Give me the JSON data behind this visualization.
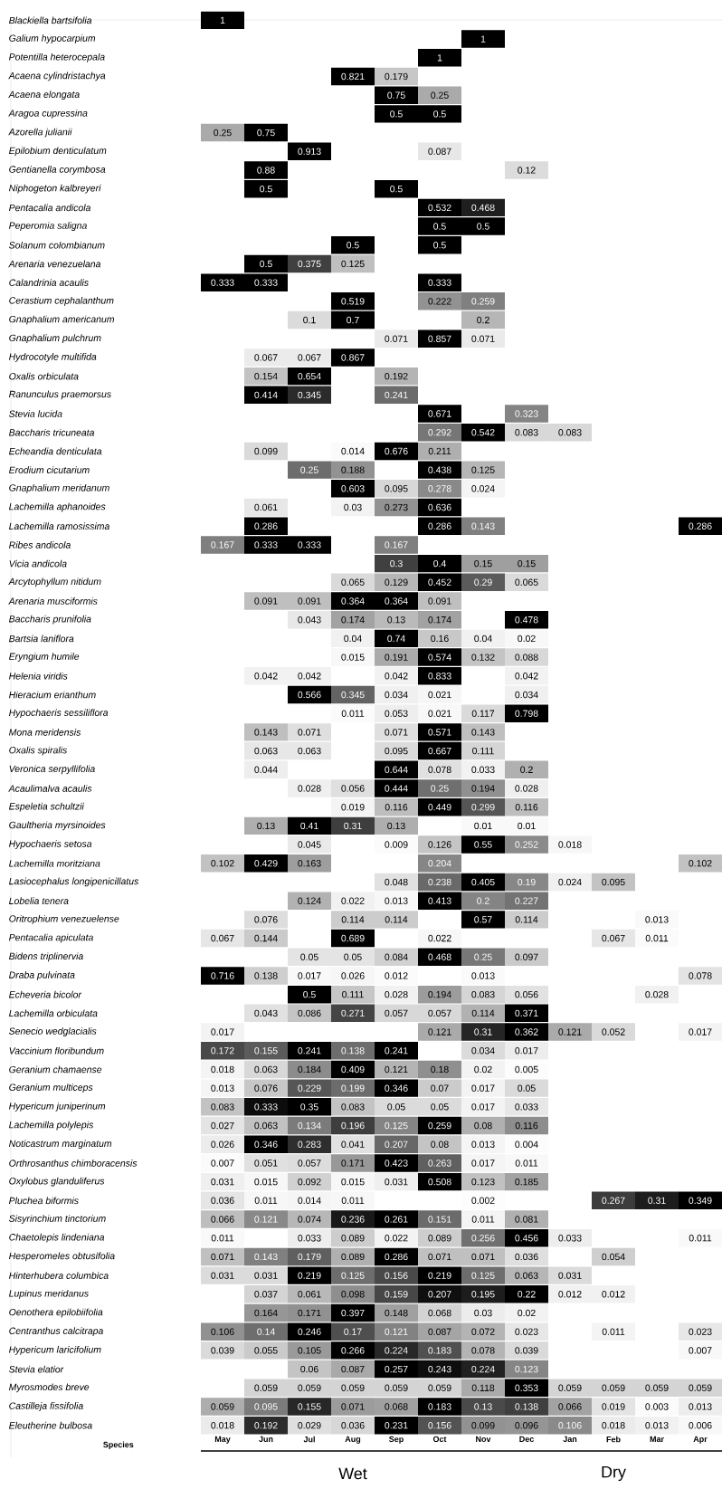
{
  "chart_data": {
    "type": "heatmap",
    "ylabel": "Species",
    "annotations": [
      "Wet",
      "Dry"
    ],
    "data_labels": true,
    "categories": [
      "May",
      "Jun",
      "Jul",
      "Aug",
      "Sep",
      "Oct",
      "Nov",
      "Dec",
      "Jan",
      "Feb",
      "Mar",
      "Apr"
    ],
    "y_categories": [
      "Blackiella bartsifolia",
      "Galium hypocarpium",
      "Potentilla heterocepala",
      "Acaena cylindristachya",
      "Acaena elongata",
      "Aragoa cupressina",
      "Azorella julianii",
      "Epilobium denticulatum",
      "Gentianella corymbosa",
      "Niphogeton kalbreyeri",
      "Pentacalia andicola",
      "Peperomia saligna",
      "Solanum colombianum",
      "Arenaria venezuelana",
      "Calandrinia acaulis",
      "Cerastium cephalanthum",
      "Gnaphalium americanum",
      "Gnaphalium pulchrum",
      "Hydrocotyle multifida",
      "Oxalis orbiculata",
      "Ranunculus praemorsus",
      "Stevia lucida",
      "Baccharis tricuneata",
      "Echeandia denticulata",
      "Erodium cicutarium",
      "Gnaphalium meridanum",
      "Lachemilla aphanoides",
      "Lachemilla ramosissima",
      "Ribes andicola",
      "Vicia andicola",
      "Arcytophyllum nitidum",
      "Arenaria musciformis",
      "Baccharis prunifolia",
      "Bartsia laniflora",
      "Eryngium humile",
      "Helenia viridis",
      "Hieracium erianthum",
      "Hypochaeris sessiliflora",
      "Mona meridensis",
      "Oxalis spiralis",
      "Veronica serpyllifolia",
      "Acaulimalva acaulis",
      "Espeletia schultzii",
      "Gaultheria myrsinoides",
      "Hypochaeris setosa",
      "Lachemilla moritziana",
      "Lasiocephalus longipenicillatus",
      "Lobelia tenera",
      "Oritrophium venezuelense",
      "Pentacalia apiculata",
      "Bidens triplinervia",
      "Draba pulvinata",
      "Echeveria bicolor",
      "Lachemilla orbiculata",
      "Senecio wedglacialis",
      "Vaccinium floribundum",
      "Geranium chamaense",
      "Geranium multiceps",
      "Hypericum juniperinum",
      "Lachemilla polylepis",
      "Noticastrum marginatum",
      "Orthrosanthus chimboracensis",
      "Oxylobus glanduliferus",
      "Pluchea biformis",
      "Sisyrinchium tinctorium",
      "Chaetolepis lindeniana",
      "Hesperomeles obtusifolia",
      "Hinterhubera columbica",
      "Lupinus meridanus",
      "Oenothera epilobiifolia",
      "Centranthus calcitrapa",
      "Hypericum laricifolium",
      "Stevia elatior",
      "Myrosmodes breve",
      "Castilleja fissifolia",
      "Eleutherine bulbosa"
    ],
    "cells": [
      [
        1,
        null,
        null,
        null,
        null,
        null,
        null,
        null,
        null,
        null,
        null,
        null
      ],
      [
        null,
        null,
        null,
        null,
        null,
        null,
        1,
        null,
        null,
        null,
        null,
        null
      ],
      [
        null,
        null,
        null,
        null,
        null,
        1,
        null,
        null,
        null,
        null,
        null,
        null
      ],
      [
        null,
        null,
        null,
        0.821,
        0.179,
        null,
        null,
        null,
        null,
        null,
        null,
        null
      ],
      [
        null,
        null,
        null,
        null,
        0.75,
        0.25,
        null,
        null,
        null,
        null,
        null,
        null
      ],
      [
        null,
        null,
        null,
        null,
        0.5,
        0.5,
        null,
        null,
        null,
        null,
        null,
        null
      ],
      [
        0.25,
        0.75,
        null,
        null,
        null,
        null,
        null,
        null,
        null,
        null,
        null,
        null
      ],
      [
        null,
        null,
        0.913,
        null,
        null,
        0.087,
        null,
        null,
        null,
        null,
        null,
        null
      ],
      [
        null,
        0.88,
        null,
        null,
        null,
        null,
        null,
        0.12,
        null,
        null,
        null,
        null
      ],
      [
        null,
        0.5,
        null,
        null,
        0.5,
        null,
        null,
        null,
        null,
        null,
        null,
        null
      ],
      [
        null,
        null,
        null,
        null,
        null,
        0.532,
        0.468,
        null,
        null,
        null,
        null,
        null
      ],
      [
        null,
        null,
        null,
        null,
        null,
        0.5,
        0.5,
        null,
        null,
        null,
        null,
        null
      ],
      [
        null,
        null,
        null,
        0.5,
        null,
        0.5,
        null,
        null,
        null,
        null,
        null,
        null
      ],
      [
        null,
        0.5,
        0.375,
        0.125,
        null,
        null,
        null,
        null,
        null,
        null,
        null,
        null
      ],
      [
        0.333,
        0.333,
        null,
        null,
        null,
        0.333,
        null,
        null,
        null,
        null,
        null,
        null
      ],
      [
        null,
        null,
        null,
        0.519,
        null,
        0.222,
        0.259,
        null,
        null,
        null,
        null,
        null
      ],
      [
        null,
        null,
        0.1,
        0.7,
        null,
        null,
        0.2,
        null,
        null,
        null,
        null,
        null
      ],
      [
        null,
        null,
        null,
        null,
        0.071,
        0.857,
        0.071,
        null,
        null,
        null,
        null,
        null
      ],
      [
        null,
        0.067,
        0.067,
        0.867,
        null,
        null,
        null,
        null,
        null,
        null,
        null,
        null
      ],
      [
        null,
        0.154,
        0.654,
        null,
        0.192,
        null,
        null,
        null,
        null,
        null,
        null,
        null
      ],
      [
        null,
        0.414,
        0.345,
        null,
        0.241,
        null,
        null,
        null,
        null,
        null,
        null,
        null
      ],
      [
        null,
        null,
        null,
        null,
        null,
        0.671,
        null,
        0.323,
        null,
        null,
        null,
        null
      ],
      [
        null,
        null,
        null,
        null,
        null,
        0.292,
        0.542,
        0.083,
        0.083,
        null,
        null,
        null
      ],
      [
        null,
        0.099,
        null,
        0.014,
        0.676,
        0.211,
        null,
        null,
        null,
        null,
        null,
        null
      ],
      [
        null,
        null,
        0.25,
        0.188,
        null,
        0.438,
        0.125,
        null,
        null,
        null,
        null,
        null
      ],
      [
        null,
        null,
        null,
        0.603,
        0.095,
        0.278,
        0.024,
        null,
        null,
        null,
        null,
        null
      ],
      [
        null,
        0.061,
        null,
        0.03,
        0.273,
        0.636,
        null,
        null,
        null,
        null,
        null,
        null
      ],
      [
        null,
        0.286,
        null,
        null,
        null,
        0.286,
        0.143,
        null,
        null,
        null,
        null,
        0.286
      ],
      [
        0.167,
        0.333,
        0.333,
        null,
        0.167,
        null,
        null,
        null,
        null,
        null,
        null,
        null
      ],
      [
        null,
        null,
        null,
        null,
        0.3,
        0.4,
        0.15,
        0.15,
        null,
        null,
        null,
        null
      ],
      [
        null,
        null,
        null,
        0.065,
        0.129,
        0.452,
        0.29,
        0.065,
        null,
        null,
        null,
        null
      ],
      [
        null,
        0.091,
        0.091,
        0.364,
        0.364,
        0.091,
        null,
        null,
        null,
        null,
        null,
        null
      ],
      [
        null,
        null,
        0.043,
        0.174,
        0.13,
        0.174,
        null,
        0.478,
        null,
        null,
        null,
        null
      ],
      [
        null,
        null,
        null,
        0.04,
        0.74,
        0.16,
        0.04,
        0.02,
        null,
        null,
        null,
        null
      ],
      [
        null,
        null,
        null,
        0.015,
        0.191,
        0.574,
        0.132,
        0.088,
        null,
        null,
        null,
        null
      ],
      [
        null,
        0.042,
        0.042,
        null,
        0.042,
        0.833,
        null,
        0.042,
        null,
        null,
        null,
        null
      ],
      [
        null,
        null,
        0.566,
        0.345,
        0.034,
        0.021,
        null,
        0.034,
        null,
        null,
        null,
        null
      ],
      [
        null,
        null,
        null,
        0.011,
        0.053,
        0.021,
        0.117,
        0.798,
        null,
        null,
        null,
        null
      ],
      [
        null,
        0.143,
        0.071,
        null,
        0.071,
        0.571,
        0.143,
        null,
        null,
        null,
        null,
        null
      ],
      [
        null,
        0.063,
        0.063,
        null,
        0.095,
        0.667,
        0.111,
        null,
        null,
        null,
        null,
        null
      ],
      [
        null,
        0.044,
        null,
        null,
        0.644,
        0.078,
        0.033,
        0.2,
        null,
        null,
        null,
        null
      ],
      [
        null,
        null,
        0.028,
        0.056,
        0.444,
        0.25,
        0.194,
        0.028,
        null,
        null,
        null,
        null
      ],
      [
        null,
        null,
        null,
        0.019,
        0.116,
        0.449,
        0.299,
        0.116,
        null,
        null,
        null,
        null
      ],
      [
        null,
        0.13,
        0.41,
        0.31,
        0.13,
        null,
        0.01,
        0.01,
        null,
        null,
        null,
        null
      ],
      [
        null,
        null,
        0.045,
        null,
        0.009,
        0.126,
        0.55,
        0.252,
        0.018,
        null,
        null,
        null
      ],
      [
        0.102,
        0.429,
        0.163,
        null,
        null,
        0.204,
        null,
        null,
        null,
        null,
        null,
        0.102
      ],
      [
        null,
        null,
        null,
        null,
        0.048,
        0.238,
        0.405,
        0.19,
        0.024,
        0.095,
        null,
        null
      ],
      [
        null,
        null,
        0.124,
        0.022,
        0.013,
        0.413,
        0.2,
        0.227,
        null,
        null,
        null,
        null
      ],
      [
        null,
        0.076,
        null,
        0.114,
        0.114,
        null,
        0.57,
        0.114,
        null,
        null,
        0.013,
        null
      ],
      [
        0.067,
        0.144,
        null,
        0.689,
        null,
        0.022,
        null,
        null,
        null,
        0.067,
        0.011,
        null
      ],
      [
        null,
        null,
        0.05,
        0.05,
        0.084,
        0.468,
        0.25,
        0.097,
        null,
        null,
        null,
        null
      ],
      [
        0.716,
        0.138,
        0.017,
        0.026,
        0.012,
        null,
        0.013,
        null,
        null,
        null,
        null,
        0.078
      ],
      [
        null,
        null,
        0.5,
        0.111,
        0.028,
        0.194,
        0.083,
        0.056,
        null,
        null,
        0.028,
        null
      ],
      [
        null,
        0.043,
        0.086,
        0.271,
        0.057,
        0.057,
        0.114,
        0.371,
        null,
        null,
        null,
        null
      ],
      [
        0.017,
        null,
        null,
        null,
        null,
        0.121,
        0.31,
        0.362,
        0.121,
        0.052,
        null,
        0.017
      ],
      [
        0.172,
        0.155,
        0.241,
        0.138,
        0.241,
        null,
        0.034,
        0.017,
        null,
        null,
        null,
        null
      ],
      [
        0.018,
        0.063,
        0.184,
        0.409,
        0.121,
        0.18,
        0.02,
        0.005,
        null,
        null,
        null,
        null
      ],
      [
        0.013,
        0.076,
        0.229,
        0.199,
        0.346,
        0.07,
        0.017,
        0.05,
        null,
        null,
        null,
        null
      ],
      [
        0.083,
        0.333,
        0.35,
        0.083,
        0.05,
        0.05,
        0.017,
        0.033,
        null,
        null,
        null,
        null
      ],
      [
        0.027,
        0.063,
        0.134,
        0.196,
        0.125,
        0.259,
        0.08,
        0.116,
        null,
        null,
        null,
        null
      ],
      [
        0.026,
        0.346,
        0.283,
        0.041,
        0.207,
        0.08,
        0.013,
        0.004,
        null,
        null,
        null,
        null
      ],
      [
        0.007,
        0.051,
        0.057,
        0.171,
        0.423,
        0.263,
        0.017,
        0.011,
        null,
        null,
        null,
        null
      ],
      [
        0.031,
        0.015,
        0.092,
        0.015,
        0.031,
        0.508,
        0.123,
        0.185,
        null,
        null,
        null,
        null
      ],
      [
        0.036,
        0.011,
        0.014,
        0.011,
        null,
        null,
        0.002,
        null,
        null,
        0.267,
        0.31,
        0.349
      ],
      [
        0.066,
        0.121,
        0.074,
        0.236,
        0.261,
        0.151,
        0.011,
        0.081,
        null,
        null,
        null,
        null
      ],
      [
        0.011,
        null,
        0.033,
        0.089,
        0.022,
        0.089,
        0.256,
        0.456,
        0.033,
        null,
        null,
        0.011
      ],
      [
        0.071,
        0.143,
        0.179,
        0.089,
        0.286,
        0.071,
        0.071,
        0.036,
        null,
        0.054,
        null,
        null
      ],
      [
        0.031,
        0.031,
        0.219,
        0.125,
        0.156,
        0.219,
        0.125,
        0.063,
        0.031,
        null,
        null,
        null
      ],
      [
        null,
        0.037,
        0.061,
        0.098,
        0.159,
        0.207,
        0.195,
        0.22,
        0.012,
        0.012,
        null,
        null
      ],
      [
        null,
        0.164,
        0.171,
        0.397,
        0.148,
        0.068,
        0.03,
        0.02,
        null,
        null,
        null,
        null
      ],
      [
        0.106,
        0.14,
        0.246,
        0.17,
        0.121,
        0.087,
        0.072,
        0.023,
        null,
        0.011,
        null,
        0.023
      ],
      [
        0.039,
        0.055,
        0.105,
        0.266,
        0.224,
        0.183,
        0.078,
        0.039,
        null,
        null,
        null,
        0.007
      ],
      [
        null,
        null,
        0.06,
        0.087,
        0.257,
        0.243,
        0.224,
        0.123,
        null,
        null,
        null,
        null
      ],
      [
        null,
        0.059,
        0.059,
        0.059,
        0.059,
        0.059,
        0.118,
        0.353,
        0.059,
        0.059,
        0.059,
        0.059
      ],
      [
        0.059,
        0.095,
        0.155,
        0.071,
        0.068,
        0.183,
        0.13,
        0.138,
        0.066,
        0.019,
        0.003,
        0.013
      ],
      [
        0.018,
        0.192,
        0.029,
        0.036,
        0.231,
        0.156,
        0.099,
        0.096,
        0.106,
        0.018,
        0.013,
        0.006
      ]
    ]
  }
}
